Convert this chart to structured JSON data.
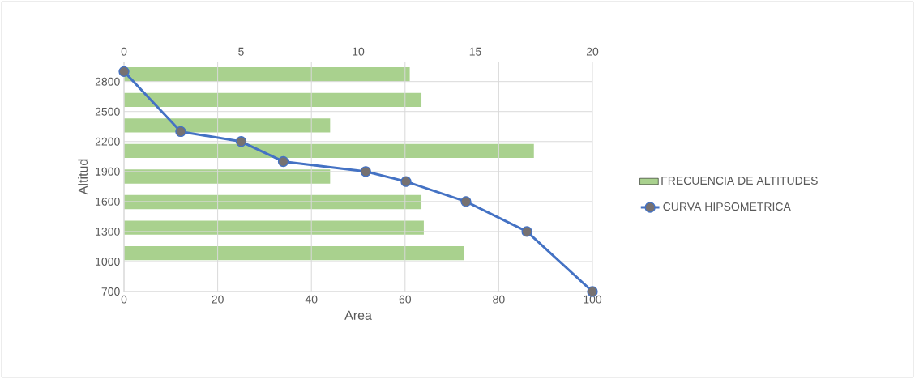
{
  "chart_data": [
    {
      "type": "bar",
      "orientation": "horizontal",
      "categories": [
        null,
        null,
        null,
        null,
        null,
        null,
        null,
        null
      ],
      "xlim": [
        0,
        20
      ],
      "xticks": [
        0,
        5,
        10,
        15,
        20
      ],
      "tick_labels": "x",
      "legend": "right",
      "series": [
        {
          "name": "FRECUENCIA DE ALTITUDES",
          "color": "#a9d18e",
          "values": [
            12.2,
            12.7,
            8.8,
            17.5,
            8.8,
            12.7,
            12.8,
            14.5
          ]
        }
      ]
    },
    {
      "type": "line",
      "xlabel": "Area",
      "ylabel": "Altitud",
      "xlim": [
        0,
        100
      ],
      "xticks": [
        0,
        20,
        40,
        60,
        80,
        100
      ],
      "ylim": [
        700,
        3000
      ],
      "yticks": [
        700,
        1000,
        1300,
        1600,
        1900,
        2200,
        2500,
        2800
      ],
      "grid": true,
      "legend": "right",
      "marker": "circle",
      "line_style": "solid",
      "x": [
        0,
        12.1,
        25,
        34,
        51.6,
        60.2,
        73,
        86,
        100
      ],
      "series": [
        {
          "name": "CURVA HIPSOMETRICA",
          "color": "#4472c4",
          "values": [
            2900,
            2300,
            2200,
            2000,
            1900,
            1800,
            1600,
            1300,
            700
          ]
        }
      ]
    }
  ]
}
